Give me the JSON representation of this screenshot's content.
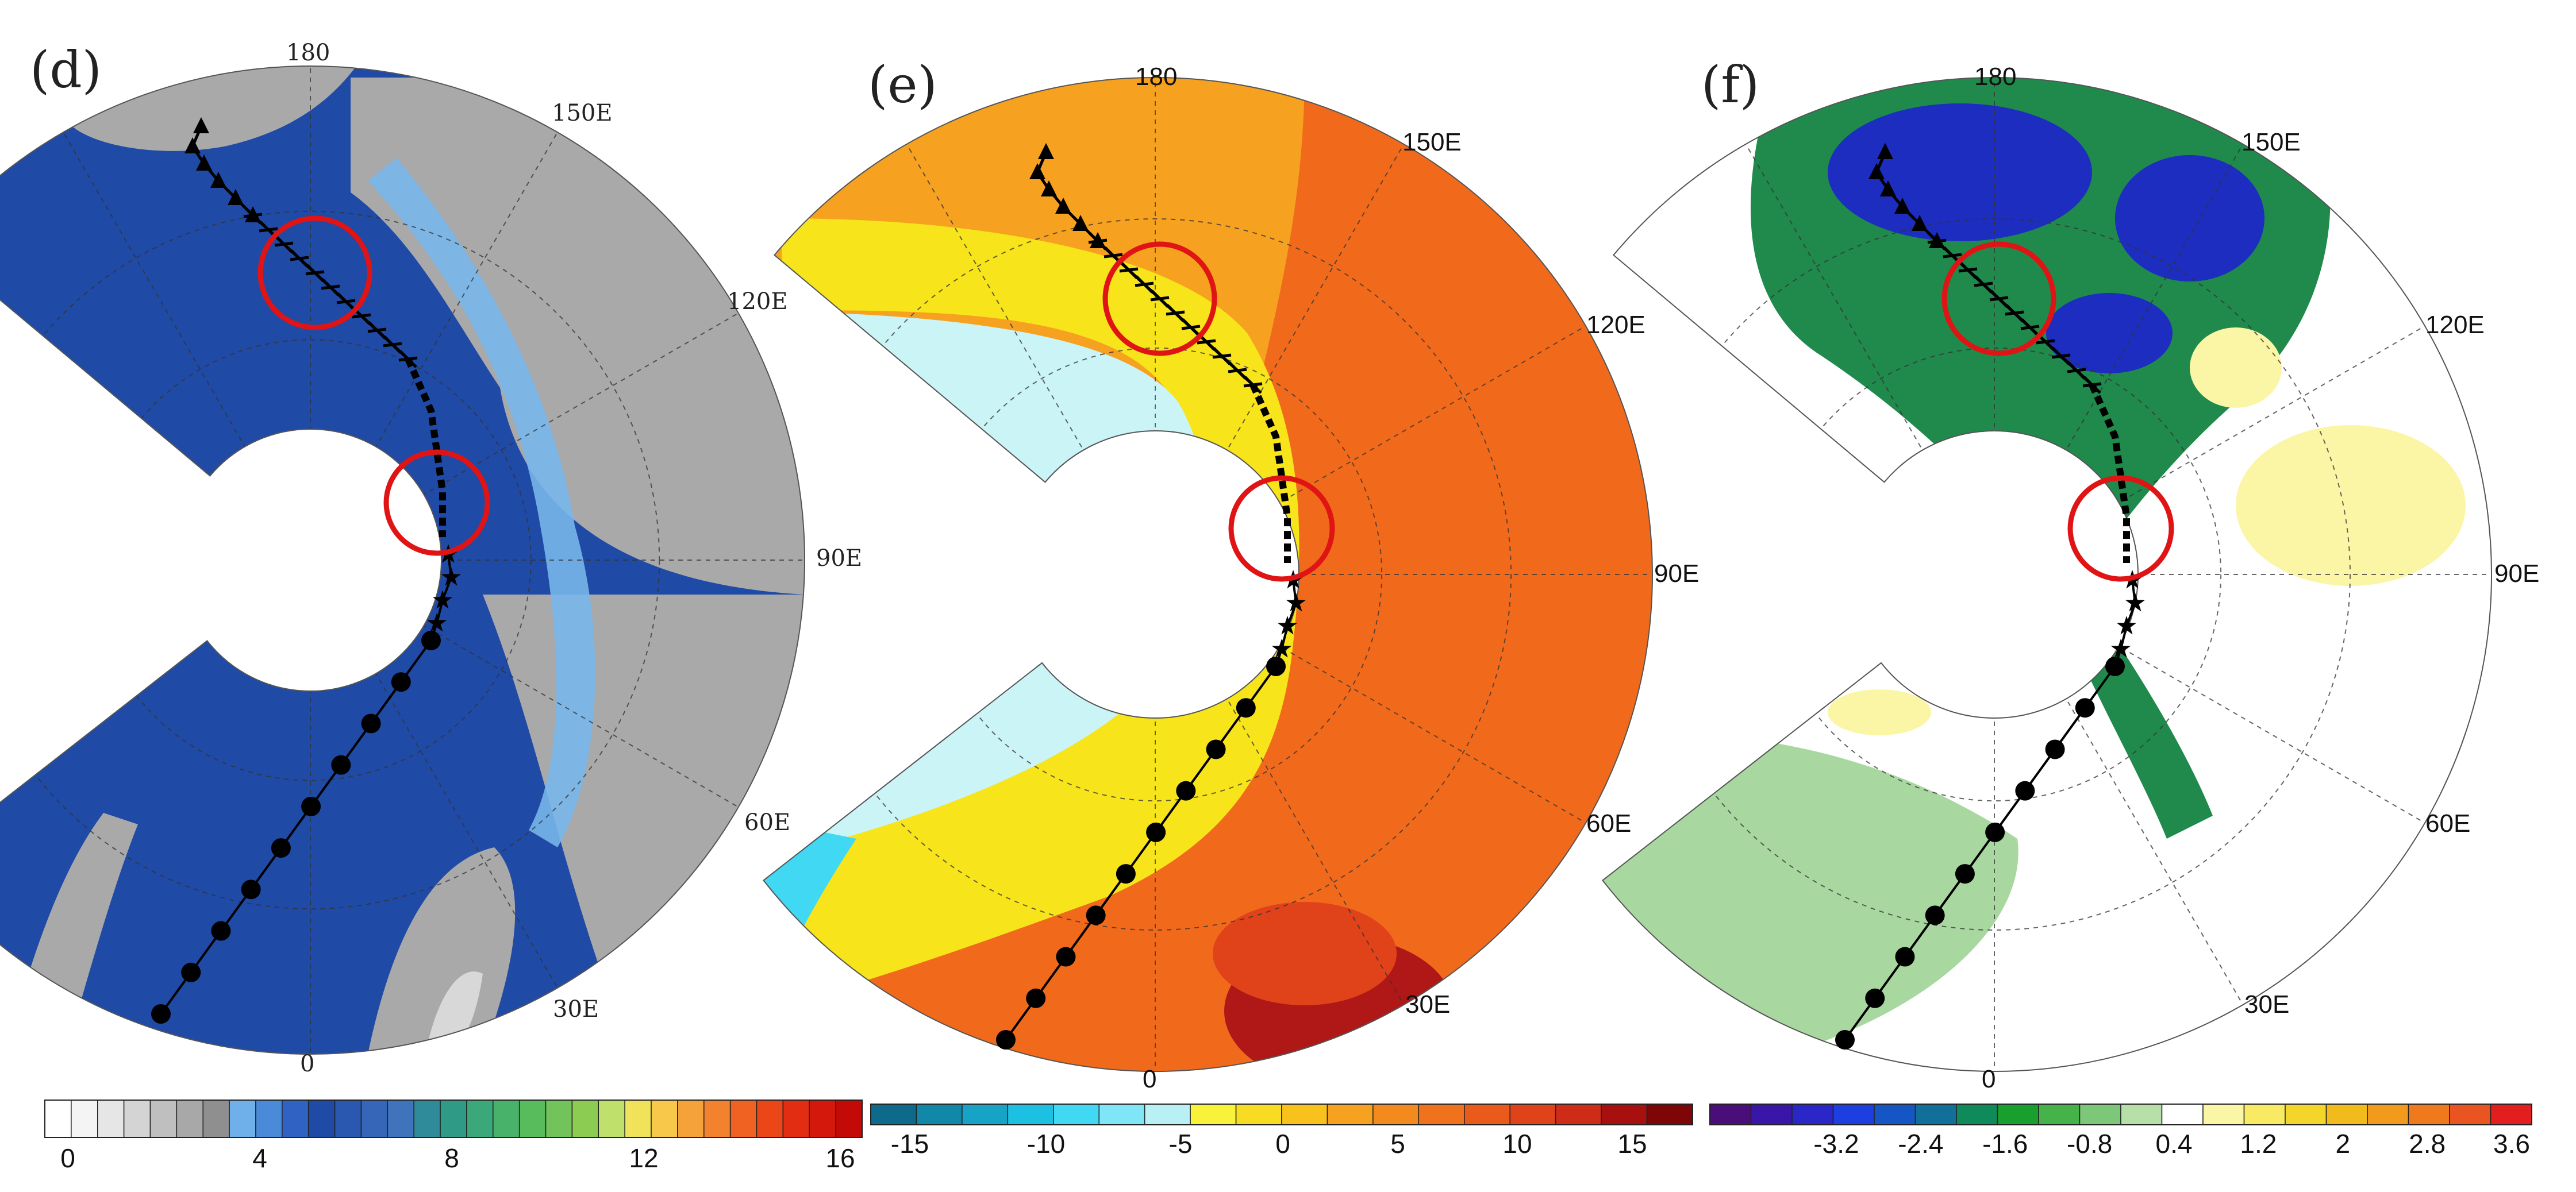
{
  "panels": [
    {
      "id": "d",
      "label": "(d)",
      "lon_labels": [
        "180",
        "150E",
        "120E",
        "90E",
        "60E",
        "30E",
        "0"
      ],
      "palette": {
        "ocean": "#1f4aa6",
        "ocean_dark": "#183c8f",
        "ice_edge": "#78b6ea",
        "land": "#a9a9a9",
        "land_light": "#d8d8d8"
      },
      "colorbar": {
        "colors": [
          "#ffffff",
          "#f4f4f4",
          "#e6e6e6",
          "#d4d4d4",
          "#bfbfbf",
          "#a8a8a8",
          "#8f8f8f",
          "#6fb0ea",
          "#4a8ad8",
          "#2f62c2",
          "#1f4aa6",
          "#2a58b0",
          "#3566b8",
          "#3f74bd",
          "#2f8a9a",
          "#2f9a86",
          "#3aa878",
          "#48b26a",
          "#58bb5c",
          "#72c45a",
          "#8ccc52",
          "#bfe06a",
          "#f0e35a",
          "#f8c84a",
          "#f6a23b",
          "#f3822e",
          "#ef6222",
          "#ea4618",
          "#e22d12",
          "#d4180c",
          "#c40a06"
        ],
        "ticks": [
          "0",
          "4",
          "8",
          "12",
          "16"
        ]
      }
    },
    {
      "id": "e",
      "label": "(e)",
      "lon_labels": [
        "180",
        "150E",
        "120E",
        "90E",
        "60E",
        "30E",
        "0"
      ],
      "palette": {
        "ocean_warm": "#f16a1c",
        "ocean_mid": "#f6a11f",
        "ice": "#cbf4f7",
        "yellow": "#f7e41a",
        "hot": "#b01818"
      },
      "colorbar": {
        "colors": [
          "#0e6a8a",
          "#1288a9",
          "#17a3c6",
          "#1cc0e2",
          "#40d8f2",
          "#7ee6f6",
          "#b9f0f6",
          "#f8f238",
          "#f8dc24",
          "#f8c11b",
          "#f6a11f",
          "#f38a1d",
          "#f0721c",
          "#ea5a1a",
          "#e0421a",
          "#cf2c18",
          "#a81010",
          "#7e0606"
        ],
        "ticks": [
          "-15",
          "-10",
          "-5",
          "0",
          "5",
          "10",
          "15"
        ]
      }
    },
    {
      "id": "f",
      "label": "(f)",
      "lon_labels": [
        "180",
        "150E",
        "120E",
        "90E",
        "60E",
        "30E",
        "0"
      ],
      "palette": {
        "strong_neg": "#1c2dbf",
        "mid_neg": "#1f8a4c",
        "weak_neg": "#a8d8a0",
        "zero": "#ffffff",
        "pos": "#fbf6a6"
      },
      "colorbar": {
        "colors": [
          "#4a0e7a",
          "#3a16a8",
          "#2a26c8",
          "#1d3ee0",
          "#1656c4",
          "#10709a",
          "#0f8a5a",
          "#199f2e",
          "#46b24a",
          "#7cc878",
          "#b6e0a8",
          "#ffffff",
          "#fbf6a6",
          "#f8ea62",
          "#f4d62a",
          "#f2bb1c",
          "#f29a1c",
          "#ef7a1e",
          "#ea5420",
          "#e21e1e"
        ],
        "ticks": [
          "-3.2",
          "-2.4",
          "-1.6",
          "-0.8",
          "0.4",
          "1.2",
          "2",
          "2.8",
          "3.6"
        ]
      }
    }
  ],
  "track": {
    "triangle_markers": 6,
    "cross_markers": 11,
    "dash_segment": "thick-dashed",
    "star_markers": 4,
    "dot_markers": 10
  },
  "highlight_circles": 2
}
